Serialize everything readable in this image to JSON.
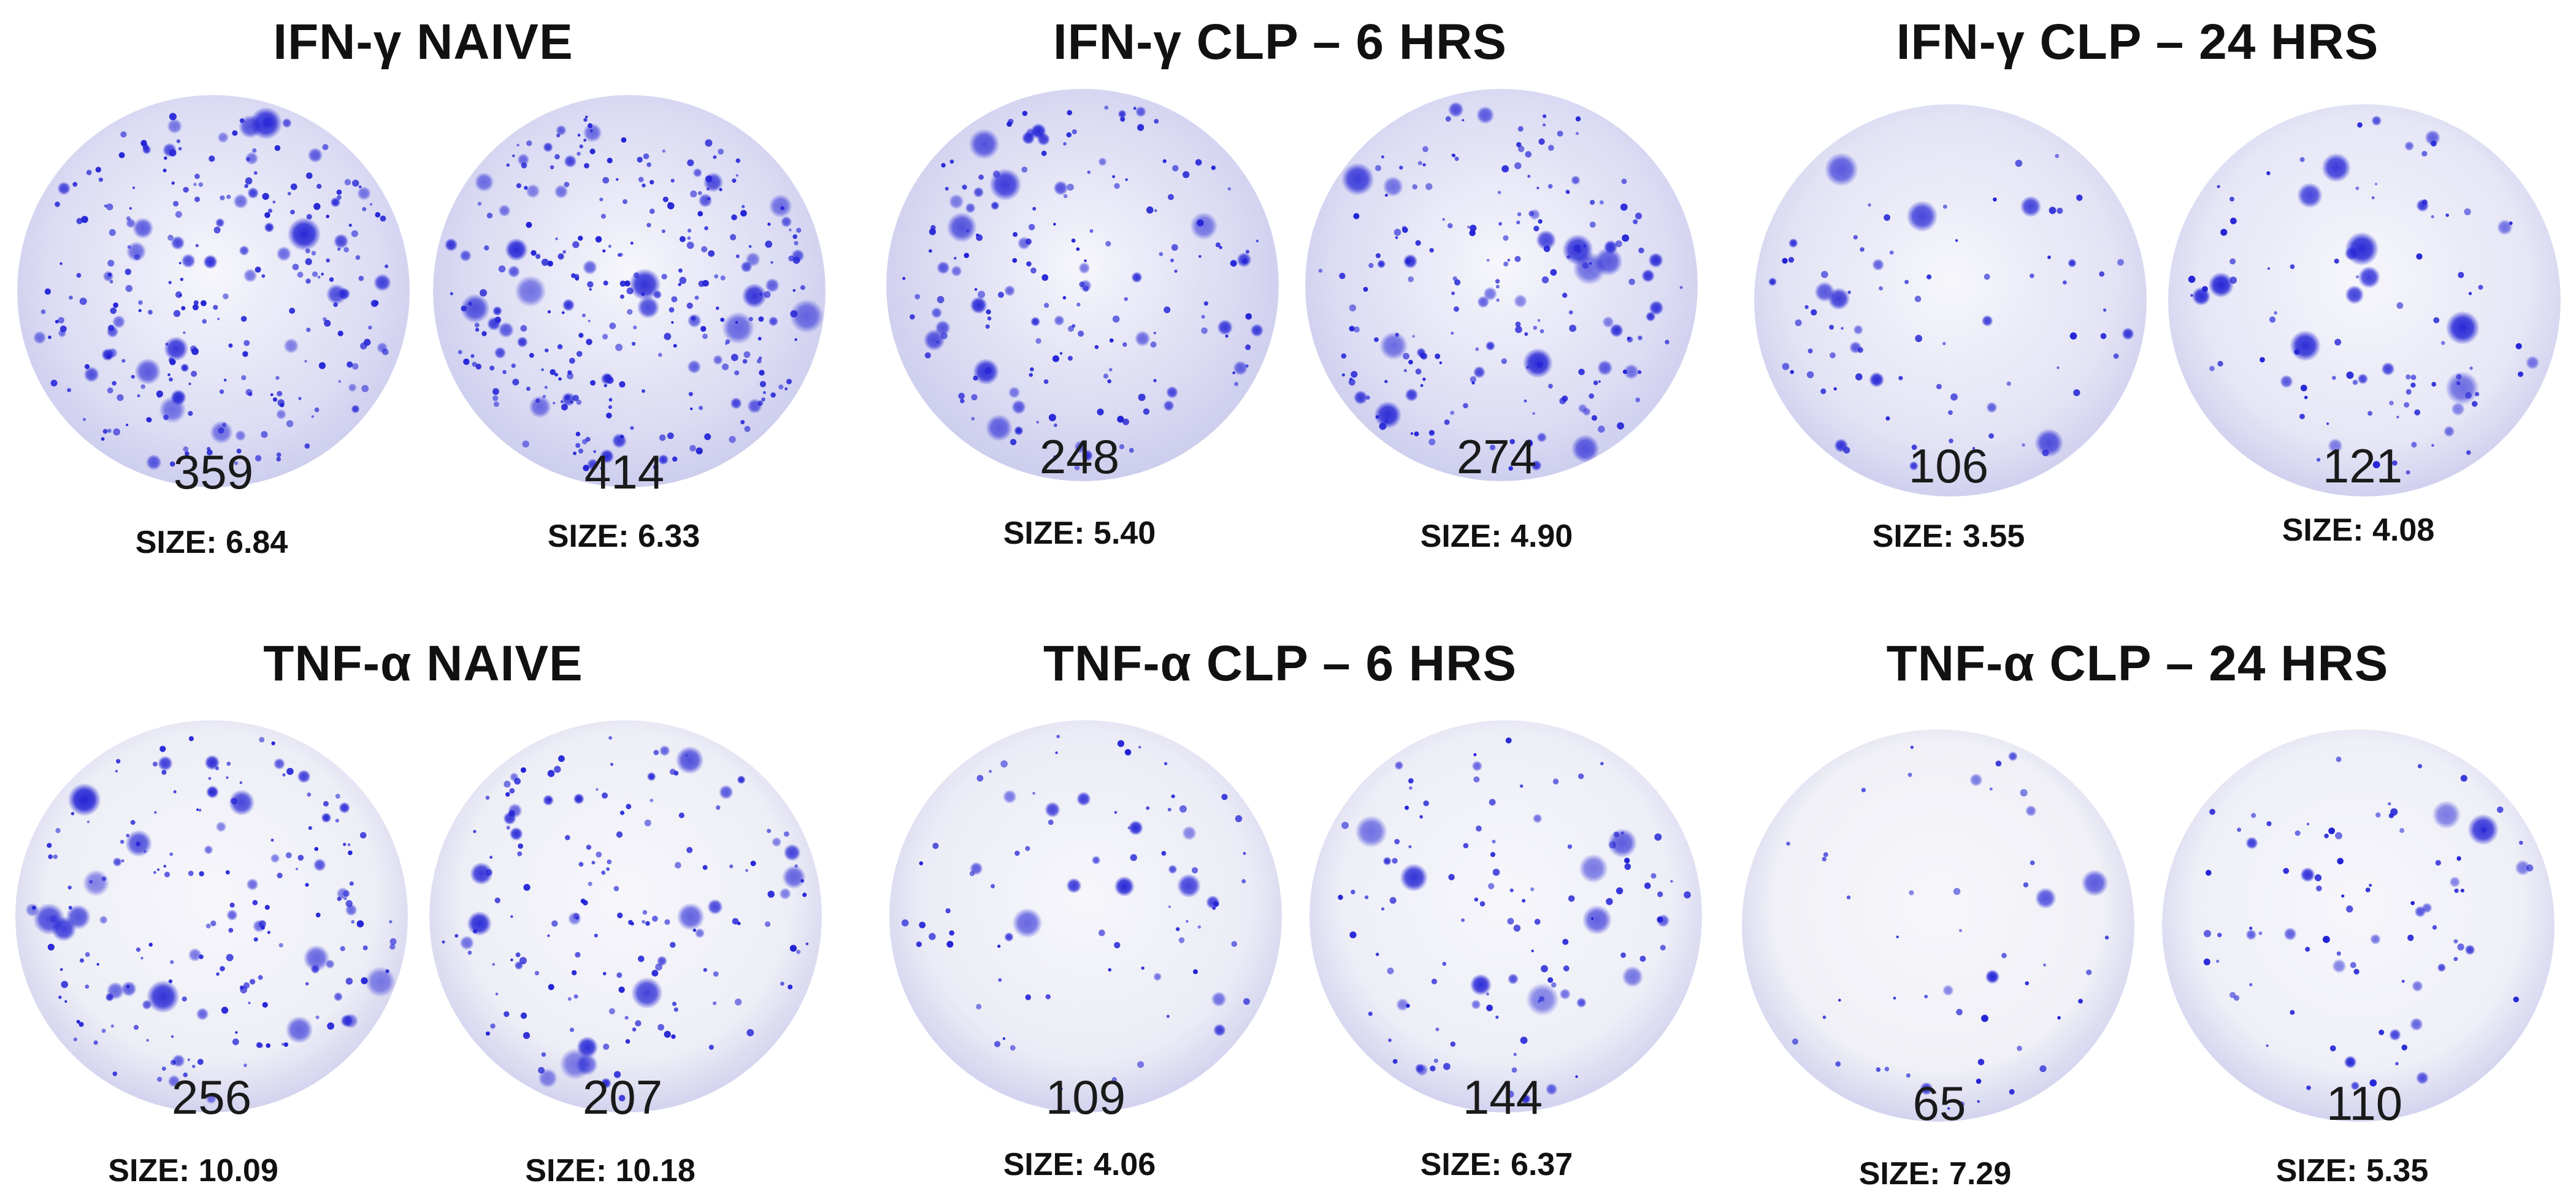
{
  "dot_color": "#2323d6",
  "panels": [
    {
      "title": "IFN-γ NAIVE",
      "wells": [
        {
          "count": "359",
          "size_label": "SIZE: 6.84",
          "tint": "#dcdcf4",
          "density": 260
        },
        {
          "count": "414",
          "size_label": "SIZE: 6.33",
          "tint": "#dadaf3",
          "density": 300
        }
      ]
    },
    {
      "title": "IFN-γ CLP – 6 HRS",
      "wells": [
        {
          "count": "248",
          "size_label": "SIZE: 5.40",
          "tint": "#d8d8f2",
          "density": 180
        },
        {
          "count": "274",
          "size_label": "SIZE: 4.90",
          "tint": "#dcdcf4",
          "density": 200
        }
      ]
    },
    {
      "title": "IFN-γ CLP – 24 HRS",
      "wells": [
        {
          "count": "106",
          "size_label": "SIZE: 3.55",
          "tint": "#e3e3f5",
          "density": 80
        },
        {
          "count": "121",
          "size_label": "SIZE: 4.08",
          "tint": "#e6e6f6",
          "density": 95
        }
      ]
    },
    {
      "title": "TNF-α NAIVE",
      "wells": [
        {
          "count": "256",
          "size_label": "SIZE: 10.09",
          "tint": "#eeeef6",
          "density": 190
        },
        {
          "count": "207",
          "size_label": "SIZE: 10.18",
          "tint": "#eeeef6",
          "density": 160
        }
      ]
    },
    {
      "title": "TNF-α CLP – 6 HRS",
      "wells": [
        {
          "count": "109",
          "size_label": "SIZE: 4.06",
          "tint": "#ececf6",
          "density": 80
        },
        {
          "count": "144",
          "size_label": "SIZE: 6.37",
          "tint": "#eeeef7",
          "density": 110
        }
      ]
    },
    {
      "title": "TNF-α CLP – 24 HRS",
      "wells": [
        {
          "count": "65",
          "size_label": "SIZE: 7.29",
          "tint": "#f0f0f6",
          "density": 50
        },
        {
          "count": "110",
          "size_label": "SIZE: 5.35",
          "tint": "#efeff7",
          "density": 85
        }
      ]
    }
  ]
}
